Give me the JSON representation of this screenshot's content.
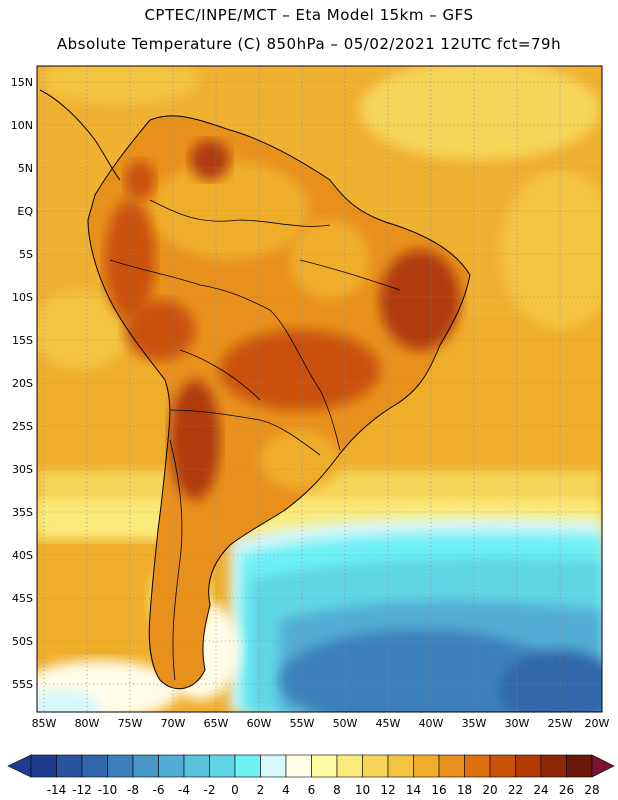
{
  "header": {
    "line1": "CPTEC/INPE/MCT –  Eta Model 15km – GFS",
    "line2": "Absolute Temperature (C) 850hPa – 05/02/2021 12UTC fct=79h"
  },
  "axes": {
    "latitudes": [
      "15N",
      "10N",
      "5N",
      "EQ",
      "5S",
      "10S",
      "15S",
      "20S",
      "25S",
      "30S",
      "35S",
      "40S",
      "45S",
      "50S",
      "55S"
    ],
    "longitudes": [
      "85W",
      "80W",
      "75W",
      "70W",
      "65W",
      "60W",
      "55W",
      "50W",
      "45W",
      "40W",
      "35W",
      "30W",
      "25W",
      "20W"
    ]
  },
  "colorbar": {
    "labels": [
      "-14",
      "-12",
      "-10",
      "-8",
      "-6",
      "-4",
      "-2",
      "0",
      "2",
      "4",
      "6",
      "8",
      "10",
      "12",
      "14",
      "16",
      "18",
      "20",
      "22",
      "24",
      "26",
      "28"
    ],
    "colors": [
      "#1f3d8f",
      "#2a559e",
      "#3168ab",
      "#3a80bb",
      "#4797c6",
      "#52acd3",
      "#59c2dc",
      "#5fd6e6",
      "#6ef0f5",
      "#d7f7fb",
      "#fffde8",
      "#fffba0",
      "#fbeb7a",
      "#f6d65a",
      "#f3c440",
      "#f0ad2a",
      "#e8901c",
      "#dd6f0f",
      "#c9510a",
      "#b03b07",
      "#8e2706",
      "#6b1808"
    ]
  }
}
